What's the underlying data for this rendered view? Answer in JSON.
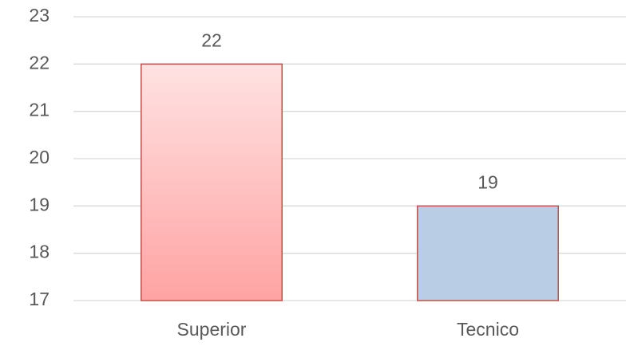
{
  "chart_data": {
    "type": "bar",
    "categories": [
      "Superior",
      "Tecnico"
    ],
    "values": [
      22,
      19
    ],
    "colors": [
      "#ffa3a3",
      "#b9cde5"
    ],
    "gradient": [
      true,
      false
    ],
    "edge_color": "#c0504d",
    "ylim": [
      17,
      23
    ],
    "yticks": [
      17,
      18,
      19,
      20,
      21,
      22,
      23
    ],
    "grid": true
  }
}
